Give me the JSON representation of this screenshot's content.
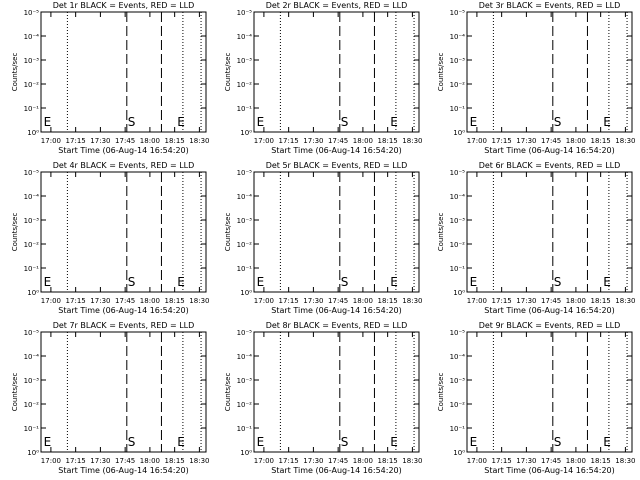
{
  "panel_ylabel": "Counts/sec",
  "panel_xlabel": "Start Time (06-Aug-14 16:54:20)",
  "x_tick_labels": [
    "17:00",
    "17:15",
    "17:30",
    "17:45",
    "18:00",
    "18:15",
    "18:30"
  ],
  "y_tick_labels": [
    "10⁰",
    "10⁻¹",
    "10⁻²",
    "10⁻³",
    "10⁻⁴",
    "10⁻⁵"
  ],
  "marker_labels": {
    "start": "S",
    "end": "E"
  },
  "chart_data": [
    {
      "type": "line",
      "title": "Det 1r BLACK = Events, RED = LLD",
      "xlabel": "Start Time (06-Aug-14 16:54:20)",
      "ylabel": "Counts/sec",
      "x_unit": "time",
      "xlim": [
        "16:54",
        "18:34"
      ],
      "y_scale": "log",
      "ylim": [
        1,
        1e-05
      ],
      "series": [],
      "vlines_dotted": [
        "17:10",
        "18:20",
        "18:31"
      ],
      "vlines_dashed": [
        "17:46",
        "18:07"
      ],
      "markers": [
        {
          "label": "E",
          "x": "16:55"
        },
        {
          "label": "S",
          "x": "17:46"
        },
        {
          "label": "E",
          "x": "18:16"
        }
      ]
    },
    {
      "type": "line",
      "title": "Det 2r BLACK = Events, RED = LLD",
      "xlabel": "Start Time (06-Aug-14 16:54:20)",
      "ylabel": "Counts/sec",
      "x_unit": "time",
      "xlim": [
        "16:54",
        "18:34"
      ],
      "y_scale": "log",
      "ylim": [
        1,
        1e-05
      ],
      "series": [],
      "vlines_dotted": [
        "17:10",
        "18:20",
        "18:31"
      ],
      "vlines_dashed": [
        "17:46",
        "18:07"
      ],
      "markers": [
        {
          "label": "E",
          "x": "16:55"
        },
        {
          "label": "S",
          "x": "17:46"
        },
        {
          "label": "E",
          "x": "18:16"
        }
      ]
    },
    {
      "type": "line",
      "title": "Det 3r BLACK = Events, RED = LLD",
      "xlabel": "Start Time (06-Aug-14 16:54:20)",
      "ylabel": "Counts/sec",
      "x_unit": "time",
      "xlim": [
        "16:54",
        "18:34"
      ],
      "y_scale": "log",
      "ylim": [
        1,
        1e-05
      ],
      "series": [],
      "vlines_dotted": [
        "17:10",
        "18:20",
        "18:31"
      ],
      "vlines_dashed": [
        "17:46",
        "18:07"
      ],
      "markers": [
        {
          "label": "E",
          "x": "16:55"
        },
        {
          "label": "S",
          "x": "17:46"
        },
        {
          "label": "E",
          "x": "18:16"
        }
      ]
    },
    {
      "type": "line",
      "title": "Det 4r BLACK = Events, RED = LLD",
      "xlabel": "Start Time (06-Aug-14 16:54:20)",
      "ylabel": "Counts/sec",
      "x_unit": "time",
      "xlim": [
        "16:54",
        "18:34"
      ],
      "y_scale": "log",
      "ylim": [
        1,
        1e-05
      ],
      "series": [],
      "vlines_dotted": [
        "17:10",
        "18:20",
        "18:31"
      ],
      "vlines_dashed": [
        "17:46",
        "18:07"
      ],
      "markers": [
        {
          "label": "E",
          "x": "16:55"
        },
        {
          "label": "S",
          "x": "17:46"
        },
        {
          "label": "E",
          "x": "18:16"
        }
      ]
    },
    {
      "type": "line",
      "title": "Det 5r BLACK = Events, RED = LLD",
      "xlabel": "Start Time (06-Aug-14 16:54:20)",
      "ylabel": "Counts/sec",
      "x_unit": "time",
      "xlim": [
        "16:54",
        "18:34"
      ],
      "y_scale": "log",
      "ylim": [
        1,
        1e-05
      ],
      "series": [],
      "vlines_dotted": [
        "17:10",
        "18:20",
        "18:31"
      ],
      "vlines_dashed": [
        "17:46",
        "18:07"
      ],
      "markers": [
        {
          "label": "E",
          "x": "16:55"
        },
        {
          "label": "S",
          "x": "17:46"
        },
        {
          "label": "E",
          "x": "18:16"
        }
      ]
    },
    {
      "type": "line",
      "title": "Det 6r BLACK = Events, RED = LLD",
      "xlabel": "Start Time (06-Aug-14 16:54:20)",
      "ylabel": "Counts/sec",
      "x_unit": "time",
      "xlim": [
        "16:54",
        "18:34"
      ],
      "y_scale": "log",
      "ylim": [
        1,
        1e-05
      ],
      "series": [],
      "vlines_dotted": [
        "17:10",
        "18:20",
        "18:31"
      ],
      "vlines_dashed": [
        "17:46",
        "18:07"
      ],
      "markers": [
        {
          "label": "E",
          "x": "16:55"
        },
        {
          "label": "S",
          "x": "17:46"
        },
        {
          "label": "E",
          "x": "18:16"
        }
      ]
    },
    {
      "type": "line",
      "title": "Det 7r BLACK = Events, RED = LLD",
      "xlabel": "Start Time (06-Aug-14 16:54:20)",
      "ylabel": "Counts/sec",
      "x_unit": "time",
      "xlim": [
        "16:54",
        "18:34"
      ],
      "y_scale": "log",
      "ylim": [
        1,
        1e-05
      ],
      "series": [],
      "vlines_dotted": [
        "17:10",
        "18:20",
        "18:31"
      ],
      "vlines_dashed": [
        "17:46",
        "18:07"
      ],
      "markers": [
        {
          "label": "E",
          "x": "16:55"
        },
        {
          "label": "S",
          "x": "17:46"
        },
        {
          "label": "E",
          "x": "18:16"
        }
      ]
    },
    {
      "type": "line",
      "title": "Det 8r BLACK = Events, RED = LLD",
      "xlabel": "Start Time (06-Aug-14 16:54:20)",
      "ylabel": "Counts/sec",
      "x_unit": "time",
      "xlim": [
        "16:54",
        "18:34"
      ],
      "y_scale": "log",
      "ylim": [
        1,
        1e-05
      ],
      "series": [],
      "vlines_dotted": [
        "17:10",
        "18:20",
        "18:31"
      ],
      "vlines_dashed": [
        "17:46",
        "18:07"
      ],
      "markers": [
        {
          "label": "E",
          "x": "16:55"
        },
        {
          "label": "S",
          "x": "17:46"
        },
        {
          "label": "E",
          "x": "18:16"
        }
      ]
    },
    {
      "type": "line",
      "title": "Det 9r BLACK = Events, RED = LLD",
      "xlabel": "Start Time (06-Aug-14 16:54:20)",
      "ylabel": "Counts/sec",
      "x_unit": "time",
      "xlim": [
        "16:54",
        "18:34"
      ],
      "y_scale": "log",
      "ylim": [
        1,
        1e-05
      ],
      "series": [],
      "vlines_dotted": [
        "17:10",
        "18:20",
        "18:31"
      ],
      "vlines_dashed": [
        "17:46",
        "18:07"
      ],
      "markers": [
        {
          "label": "E",
          "x": "16:55"
        },
        {
          "label": "S",
          "x": "17:46"
        },
        {
          "label": "E",
          "x": "18:16"
        }
      ]
    }
  ]
}
